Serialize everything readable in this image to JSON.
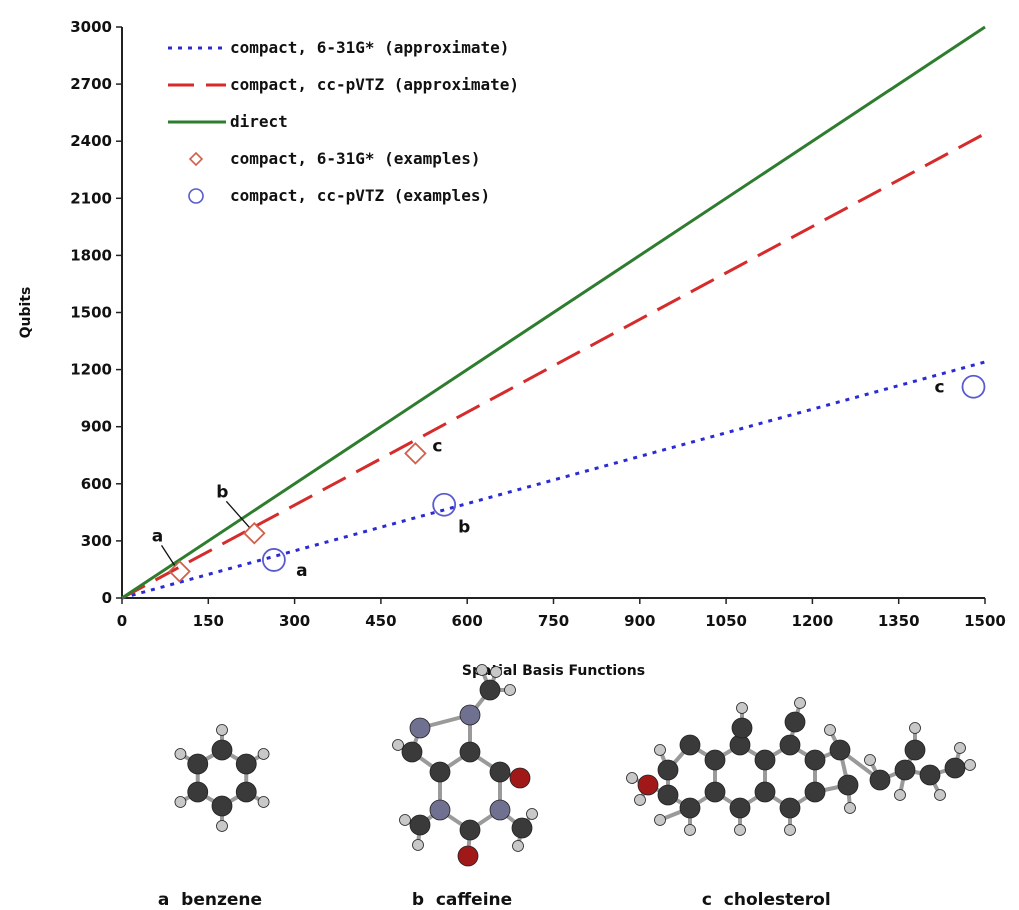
{
  "chart_data": {
    "type": "line",
    "xlabel": "Spatial Basis Functions",
    "ylabel": "Qubits",
    "xlim": [
      0,
      1500
    ],
    "ylim": [
      0,
      3000
    ],
    "xticks": [
      0,
      150,
      300,
      450,
      600,
      750,
      900,
      1050,
      1200,
      1350,
      1500
    ],
    "yticks": [
      0,
      300,
      600,
      900,
      1200,
      1500,
      1800,
      2100,
      2400,
      2700,
      3000
    ],
    "grid": false,
    "legend_position": "top-left",
    "series": [
      {
        "name": "compact, 6-31G*  (approximate)",
        "kind": "line",
        "style": "dotted",
        "color": "#2b2bd6",
        "x": [
          0,
          1500
        ],
        "y": [
          0,
          1240
        ]
      },
      {
        "name": "compact, cc-pVTZ (approximate)",
        "kind": "line",
        "style": "dashed",
        "color": "#d62b2b",
        "x": [
          0,
          1500
        ],
        "y": [
          0,
          2440
        ]
      },
      {
        "name": "direct",
        "kind": "line",
        "style": "solid",
        "color": "#2e7d2e",
        "x": [
          0,
          1500
        ],
        "y": [
          0,
          3000
        ]
      },
      {
        "name": "compact, 6-31G*  (examples)",
        "kind": "scatter",
        "marker": "diamond",
        "color": "#d0604a",
        "x": [
          100,
          230,
          510
        ],
        "y": [
          140,
          340,
          760
        ],
        "labels": [
          "a",
          "b",
          "c"
        ]
      },
      {
        "name": "compact, cc-pVTZ (examples)",
        "kind": "scatter",
        "marker": "circle",
        "color": "#5a5ad0",
        "x": [
          264,
          560,
          1480
        ],
        "y": [
          200,
          490,
          1110
        ],
        "labels": [
          "a",
          "b",
          "c"
        ]
      }
    ]
  },
  "molecules": {
    "colors": {
      "carbon": "#3a3a3a",
      "hydrogen": "#c8c8c8",
      "nitrogen": "#707090",
      "oxygen": "#a01818"
    },
    "captions": [
      {
        "letter": "a",
        "name": "benzene"
      },
      {
        "letter": "b",
        "name": "caffeine"
      },
      {
        "letter": "c",
        "name": "cholesterol"
      }
    ]
  }
}
